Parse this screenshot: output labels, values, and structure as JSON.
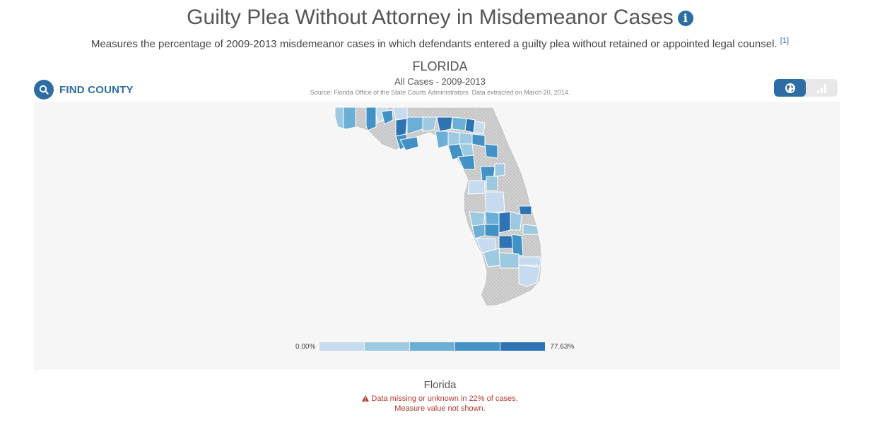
{
  "page": {
    "title": "Guilty Plea Without Attorney in Misdemeanor Cases",
    "subtitle": "Measures the percentage of 2009-2013 misdemeanor cases in which defendants entered a guilty plea without retained or appointed legal counsel.",
    "footnote": "[1]"
  },
  "find_county": {
    "label": "FIND COUNTY",
    "icon": "search-icon"
  },
  "map": {
    "state": "FLORIDA",
    "scope": "All Cases - 2009-2013",
    "source": "Source: Florida Office of the State Courts Administrators. Data extracted on March 20, 2014.",
    "no_data_pattern": "gray-crosshatch"
  },
  "view_toggle": {
    "options": [
      {
        "icon": "globe-icon",
        "active": true
      },
      {
        "icon": "bar-chart-icon",
        "active": false
      }
    ]
  },
  "legend": {
    "min_label": "0.00%",
    "max_label": "77.63%",
    "colors": [
      "#c6dbef",
      "#9ecae1",
      "#6baed6",
      "#4292c6",
      "#2e74b5"
    ]
  },
  "selection": {
    "name": "Florida",
    "warning": "Data missing or unknown in 22% of cases.",
    "note": "Measure value not shown."
  }
}
